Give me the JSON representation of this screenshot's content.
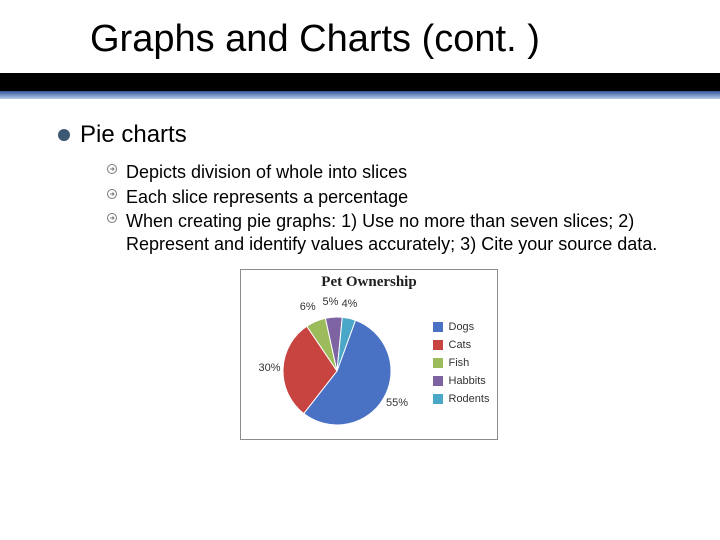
{
  "title": "Graphs and Charts (cont. )",
  "main_bullet": "Pie charts",
  "sub_bullets": [
    "Depicts division of whole into slices",
    "Each slice represents a percentage",
    "When creating pie graphs: 1) Use no more than seven slices; 2) Represent and identify values accurately; 3) Cite your source data."
  ],
  "chart": {
    "title": "Pet Ownership",
    "type": "pie",
    "slices": [
      {
        "label": "Dogs",
        "value": 55,
        "color": "#4a72c4"
      },
      {
        "label": "Cats",
        "value": 30,
        "color": "#c84441"
      },
      {
        "label": "Fish",
        "value": 6,
        "color": "#9cbb5a"
      },
      {
        "label": "Rabbits",
        "value": 5,
        "color": "#7e63a2"
      },
      {
        "label": "Rodents",
        "value": 4,
        "color": "#4aa7c8"
      }
    ],
    "pie_radius": 54,
    "label_fontsize": 11,
    "label_color": "#333333",
    "legend_fontsize": 11,
    "legend_items": [
      "Dogs",
      "Cats",
      "Fish",
      "Habbits",
      "Rodents"
    ],
    "border_color": "#8c8c8c",
    "background_color": "#ffffff",
    "percent_labels": [
      "55%",
      "30%",
      "6%",
      "5%",
      "4%"
    ]
  },
  "colors": {
    "black_bar": "#000000",
    "grad_top": "#305496",
    "grad_bottom": "#b4ccec",
    "main_bullet_dot": "#3d5873"
  }
}
